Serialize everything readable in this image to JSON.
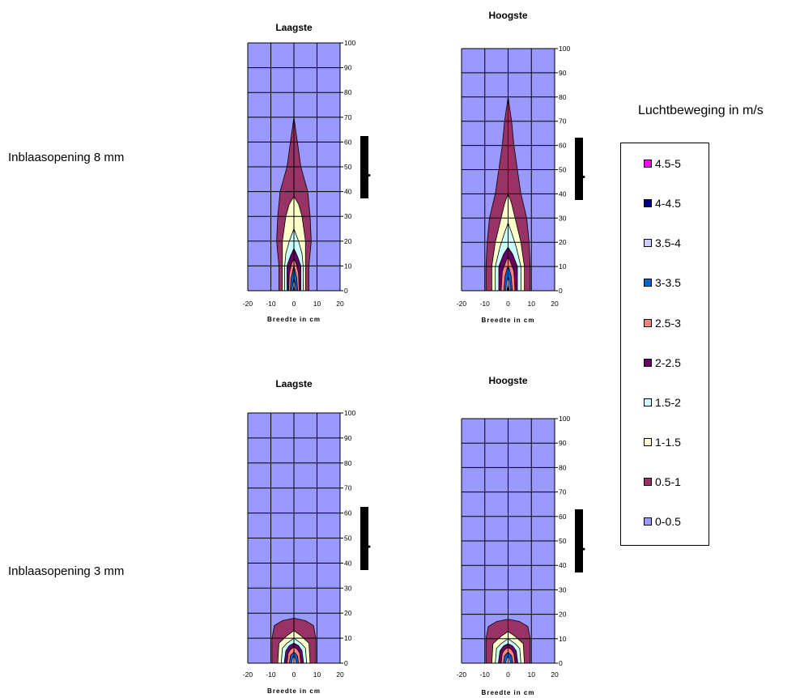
{
  "chart_data": [
    {
      "type": "contour",
      "title": "Laagste",
      "row_label": "Inblaasopening 8 mm",
      "xlabel": "Breedte in cm",
      "xlim": [
        -20,
        20
      ],
      "ylim": [
        0,
        100
      ],
      "xticks": [
        -20,
        -10,
        0,
        10,
        20
      ],
      "yticks": [
        0,
        10,
        20,
        30,
        40,
        50,
        60,
        70,
        80,
        90,
        100
      ],
      "grid": true,
      "bands": [
        {
          "range": "0.5-1",
          "profile": [
            [
              0,
              6.5
            ],
            [
              10,
              6.5
            ],
            [
              20,
              7.5
            ],
            [
              30,
              7
            ],
            [
              40,
              6
            ],
            [
              45,
              4.5
            ],
            [
              50,
              3
            ],
            [
              60,
              1.5
            ],
            [
              70,
              0
            ]
          ]
        },
        {
          "range": "1-1.5",
          "profile": [
            [
              0,
              5
            ],
            [
              10,
              5
            ],
            [
              20,
              5
            ],
            [
              30,
              3.5
            ],
            [
              35,
              2
            ],
            [
              38,
              0
            ]
          ]
        },
        {
          "range": "1.5-2",
          "profile": [
            [
              0,
              4
            ],
            [
              10,
              4
            ],
            [
              15,
              3.5
            ],
            [
              20,
              2
            ],
            [
              25,
              0
            ]
          ]
        },
        {
          "range": "2-2.5",
          "profile": [
            [
              0,
              3
            ],
            [
              10,
              3
            ],
            [
              14,
              1.5
            ],
            [
              17,
              0
            ]
          ]
        },
        {
          "range": "2.5-3",
          "profile": [
            [
              0,
              2.3
            ],
            [
              7,
              2
            ],
            [
              11,
              1
            ],
            [
              13,
              0
            ]
          ]
        },
        {
          "range": "3-3.5",
          "profile": [
            [
              0,
              1.6
            ],
            [
              5,
              1.2
            ],
            [
              8,
              0.5
            ],
            [
              10,
              0
            ]
          ]
        },
        {
          "range": "3.5-4",
          "profile": [
            [
              0,
              0.8
            ],
            [
              3,
              0.5
            ],
            [
              5,
              0
            ]
          ]
        },
        {
          "range": "4-4.5",
          "profile": [
            [
              0,
              0.35
            ],
            [
              2,
              0
            ]
          ]
        }
      ]
    },
    {
      "type": "contour",
      "title": "Hoogste",
      "row_label": "",
      "xlabel": "Breedte in cm",
      "xlim": [
        -20,
        20
      ],
      "ylim": [
        0,
        100
      ],
      "xticks": [
        -20,
        -10,
        0,
        10,
        20
      ],
      "yticks": [
        0,
        10,
        20,
        30,
        40,
        50,
        60,
        70,
        80,
        90,
        100
      ],
      "grid": true,
      "bands": [
        {
          "range": "0.5-1",
          "profile": [
            [
              0,
              9.5
            ],
            [
              10,
              9.5
            ],
            [
              20,
              9
            ],
            [
              30,
              8
            ],
            [
              40,
              5.5
            ],
            [
              50,
              4
            ],
            [
              60,
              2.5
            ],
            [
              70,
              1.5
            ],
            [
              80,
              0
            ]
          ]
        },
        {
          "range": "1-1.5",
          "profile": [
            [
              0,
              7
            ],
            [
              10,
              7
            ],
            [
              20,
              5.5
            ],
            [
              30,
              3
            ],
            [
              36,
              1.5
            ],
            [
              40,
              0
            ]
          ]
        },
        {
          "range": "1.5-2",
          "profile": [
            [
              0,
              5.5
            ],
            [
              10,
              5.5
            ],
            [
              18,
              3.5
            ],
            [
              24,
              1.5
            ],
            [
              28,
              0
            ]
          ]
        },
        {
          "range": "2-2.5",
          "profile": [
            [
              0,
              4
            ],
            [
              10,
              4
            ],
            [
              15,
              2
            ],
            [
              18,
              0
            ]
          ]
        },
        {
          "range": "2.5-3",
          "profile": [
            [
              0,
              3
            ],
            [
              8,
              2.5
            ],
            [
              12,
              1
            ],
            [
              14,
              0
            ]
          ]
        },
        {
          "range": "3-3.5",
          "profile": [
            [
              0,
              1.8
            ],
            [
              6,
              1.3
            ],
            [
              9,
              0.5
            ],
            [
              10,
              0
            ]
          ]
        },
        {
          "range": "3.5-4",
          "profile": [
            [
              0,
              1
            ],
            [
              4,
              0.6
            ],
            [
              6,
              0
            ]
          ]
        },
        {
          "range": "4-4.5",
          "profile": [
            [
              0,
              0.5
            ],
            [
              2.5,
              0
            ]
          ]
        }
      ]
    },
    {
      "type": "contour",
      "title": "Laagste",
      "row_label": "Inblaasopening 3 mm",
      "xlabel": "Breedte in cm",
      "xlim": [
        -20,
        20
      ],
      "ylim": [
        0,
        100
      ],
      "xticks": [
        -20,
        -10,
        0,
        10,
        20
      ],
      "yticks": [
        0,
        10,
        20,
        30,
        40,
        50,
        60,
        70,
        80,
        90,
        100
      ],
      "grid": true,
      "bands": [
        {
          "range": "0.5-1",
          "profile": [
            [
              0,
              9.5
            ],
            [
              10,
              9.5
            ],
            [
              15,
              8.5
            ],
            [
              17,
              5
            ],
            [
              18,
              0
            ]
          ]
        },
        {
          "range": "1-1.5",
          "profile": [
            [
              0,
              7
            ],
            [
              8,
              6.5
            ],
            [
              11,
              3
            ],
            [
              13,
              0
            ]
          ]
        },
        {
          "range": "1.5-2",
          "profile": [
            [
              0,
              5.5
            ],
            [
              6,
              5
            ],
            [
              8,
              3
            ],
            [
              10,
              0
            ]
          ]
        },
        {
          "range": "2-2.5",
          "profile": [
            [
              0,
              4.2
            ],
            [
              5,
              3.5
            ],
            [
              7,
              2
            ],
            [
              8,
              0
            ]
          ]
        },
        {
          "range": "2.5-3",
          "profile": [
            [
              0,
              3
            ],
            [
              4,
              2.5
            ],
            [
              5.5,
              1.5
            ],
            [
              6.5,
              0
            ]
          ]
        },
        {
          "range": "3-3.5",
          "profile": [
            [
              0,
              2
            ],
            [
              3,
              1.5
            ],
            [
              4,
              0.5
            ],
            [
              4.5,
              0
            ]
          ]
        },
        {
          "range": "3.5-4",
          "profile": [
            [
              0,
              1
            ],
            [
              2,
              0.6
            ],
            [
              3,
              0
            ]
          ]
        }
      ]
    },
    {
      "type": "contour",
      "title": "Hoogste",
      "row_label": "",
      "xlabel": "Breedte in cm",
      "xlim": [
        -20,
        20
      ],
      "ylim": [
        0,
        100
      ],
      "xticks": [
        -20,
        -10,
        0,
        10,
        20
      ],
      "yticks": [
        0,
        10,
        20,
        30,
        40,
        50,
        60,
        70,
        80,
        90,
        100
      ],
      "grid": true,
      "bands": [
        {
          "range": "0.5-1",
          "profile": [
            [
              0,
              9.5
            ],
            [
              10,
              9.5
            ],
            [
              15,
              8.5
            ],
            [
              17,
              5
            ],
            [
              18,
              0
            ]
          ]
        },
        {
          "range": "1-1.5",
          "profile": [
            [
              0,
              7
            ],
            [
              8,
              6.5
            ],
            [
              11,
              3
            ],
            [
              13,
              0
            ]
          ]
        },
        {
          "range": "1.5-2",
          "profile": [
            [
              0,
              5.5
            ],
            [
              6,
              5
            ],
            [
              8,
              3
            ],
            [
              10,
              0
            ]
          ]
        },
        {
          "range": "2-2.5",
          "profile": [
            [
              0,
              4.2
            ],
            [
              5,
              3.5
            ],
            [
              7,
              2
            ],
            [
              8,
              0
            ]
          ]
        },
        {
          "range": "2.5-3",
          "profile": [
            [
              0,
              3
            ],
            [
              4,
              2.5
            ],
            [
              5.5,
              1.5
            ],
            [
              6.5,
              0
            ]
          ]
        },
        {
          "range": "3-3.5",
          "profile": [
            [
              0,
              2
            ],
            [
              3,
              1.5
            ],
            [
              4,
              0.5
            ],
            [
              4.5,
              0
            ]
          ]
        },
        {
          "range": "3.5-4",
          "profile": [
            [
              0,
              1
            ],
            [
              2,
              0.6
            ],
            [
              3,
              0
            ]
          ]
        }
      ]
    }
  ],
  "legend": {
    "title": "Luchtbeweging in m/s",
    "placement": "right",
    "items": [
      {
        "label": "4.5-5",
        "color": "#ff00ff"
      },
      {
        "label": "4-4.5",
        "color": "#000080"
      },
      {
        "label": "3.5-4",
        "color": "#ccccff"
      },
      {
        "label": "3-3.5",
        "color": "#0066cc"
      },
      {
        "label": "2.5-3",
        "color": "#ff8080"
      },
      {
        "label": "2-2.5",
        "color": "#660066"
      },
      {
        "label": "1.5-2",
        "color": "#ccffff"
      },
      {
        "label": "1-1.5",
        "color": "#ffffcc"
      },
      {
        "label": "0.5-1",
        "color": "#993366"
      },
      {
        "label": "0-0.5",
        "color": "#9999ff"
      }
    ]
  }
}
